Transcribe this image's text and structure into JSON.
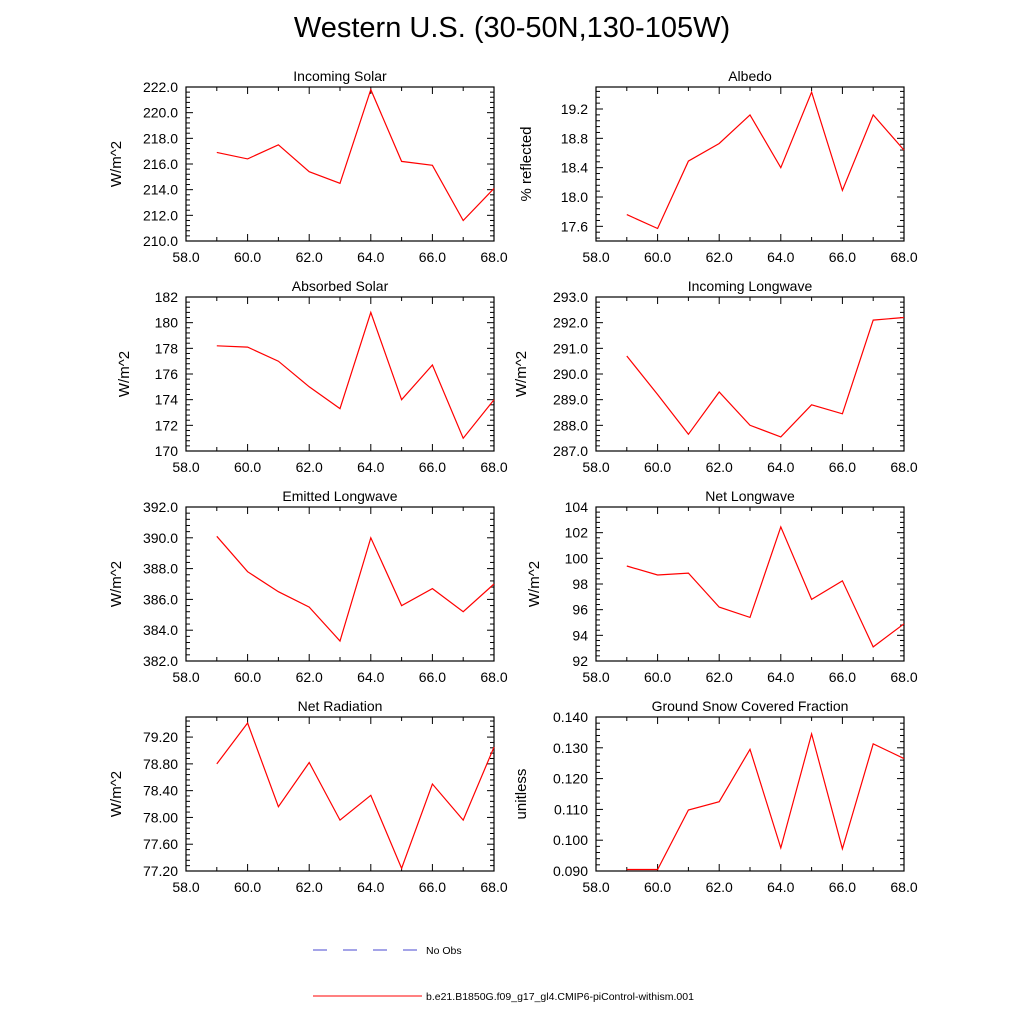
{
  "title": "Western U.S. (30-50N,130-105W)",
  "legend": {
    "items": [
      {
        "label": "No Obs",
        "color": "#4a4ad0",
        "style": "dashed"
      },
      {
        "label": "b.e21.B1850G.f09_g17_gl4.CMIP6-piControl-withism.001",
        "color": "#ff0000",
        "style": "solid"
      }
    ]
  },
  "chart_data": [
    {
      "type": "line",
      "title": "Incoming Solar",
      "ylabel": "W/m^2",
      "xlim": [
        58,
        68
      ],
      "ylim": [
        210,
        222
      ],
      "xticks": [
        "58.0",
        "60.0",
        "62.0",
        "64.0",
        "66.0",
        "68.0"
      ],
      "yticks": [
        "210.0",
        "212.0",
        "214.0",
        "216.0",
        "218.0",
        "220.0",
        "222.0"
      ],
      "ytick_values": [
        210,
        212,
        214,
        216,
        218,
        220,
        222
      ],
      "series": [
        {
          "color": "#ff0000",
          "x": [
            59,
            60,
            61,
            62,
            63,
            64,
            65,
            66,
            67,
            68
          ],
          "y": [
            216.9,
            216.4,
            217.5,
            215.4,
            214.5,
            221.8,
            216.2,
            215.9,
            211.6,
            214.1
          ]
        }
      ]
    },
    {
      "type": "line",
      "title": "Albedo",
      "ylabel": "% reflected",
      "xlim": [
        58,
        68
      ],
      "ylim": [
        17.4,
        19.5
      ],
      "xticks": [
        "58.0",
        "60.0",
        "62.0",
        "64.0",
        "66.0",
        "68.0"
      ],
      "yticks": [
        "17.6",
        "18.0",
        "18.4",
        "18.8",
        "19.2"
      ],
      "ytick_values": [
        17.6,
        18.0,
        18.4,
        18.8,
        19.2
      ],
      "series": [
        {
          "color": "#ff0000",
          "x": [
            59,
            60,
            61,
            62,
            63,
            64,
            65,
            66,
            67,
            68
          ],
          "y": [
            17.76,
            17.57,
            18.49,
            18.73,
            19.12,
            18.4,
            19.43,
            18.09,
            19.12,
            18.64
          ]
        }
      ]
    },
    {
      "type": "line",
      "title": "Absorbed Solar",
      "ylabel": "W/m^2",
      "xlim": [
        58,
        68
      ],
      "ylim": [
        170,
        182
      ],
      "xticks": [
        "58.0",
        "60.0",
        "62.0",
        "64.0",
        "66.0",
        "68.0"
      ],
      "yticks": [
        "170",
        "172",
        "174",
        "176",
        "178",
        "180",
        "182"
      ],
      "ytick_values": [
        170,
        172,
        174,
        176,
        178,
        180,
        182
      ],
      "series": [
        {
          "color": "#ff0000",
          "x": [
            59,
            60,
            61,
            62,
            63,
            64,
            65,
            66,
            67,
            68
          ],
          "y": [
            178.2,
            178.1,
            177.0,
            175.0,
            173.3,
            180.8,
            174.0,
            176.7,
            171.0,
            174.0
          ]
        }
      ]
    },
    {
      "type": "line",
      "title": "Incoming Longwave",
      "ylabel": "W/m^2",
      "xlim": [
        58,
        68
      ],
      "ylim": [
        287,
        293
      ],
      "xticks": [
        "58.0",
        "60.0",
        "62.0",
        "64.0",
        "66.0",
        "68.0"
      ],
      "yticks": [
        "287.0",
        "288.0",
        "289.0",
        "290.0",
        "291.0",
        "292.0",
        "293.0"
      ],
      "ytick_values": [
        287,
        288,
        289,
        290,
        291,
        292,
        293
      ],
      "series": [
        {
          "color": "#ff0000",
          "x": [
            59,
            60,
            61,
            62,
            63,
            64,
            65,
            66,
            67,
            68
          ],
          "y": [
            290.7,
            289.2,
            287.65,
            289.3,
            288.0,
            287.55,
            288.8,
            288.45,
            292.1,
            292.2
          ]
        }
      ]
    },
    {
      "type": "line",
      "title": "Emitted Longwave",
      "ylabel": "W/m^2",
      "xlim": [
        58,
        68
      ],
      "ylim": [
        382,
        392
      ],
      "xticks": [
        "58.0",
        "60.0",
        "62.0",
        "64.0",
        "66.0",
        "68.0"
      ],
      "yticks": [
        "382.0",
        "384.0",
        "386.0",
        "388.0",
        "390.0",
        "392.0"
      ],
      "ytick_values": [
        382,
        384,
        386,
        388,
        390,
        392
      ],
      "series": [
        {
          "color": "#ff0000",
          "x": [
            59,
            60,
            61,
            62,
            63,
            64,
            65,
            66,
            67,
            68
          ],
          "y": [
            390.1,
            387.8,
            386.5,
            385.5,
            383.3,
            390.0,
            385.6,
            386.7,
            385.2,
            387.0
          ]
        }
      ]
    },
    {
      "type": "line",
      "title": "Net Longwave",
      "ylabel": "W/m^2",
      "xlim": [
        58,
        68
      ],
      "ylim": [
        92,
        104
      ],
      "xticks": [
        "58.0",
        "60.0",
        "62.0",
        "64.0",
        "66.0",
        "68.0"
      ],
      "yticks": [
        "92",
        "94",
        "96",
        "98",
        "100",
        "102",
        "104"
      ],
      "ytick_values": [
        92,
        94,
        96,
        98,
        100,
        102,
        104
      ],
      "series": [
        {
          "color": "#ff0000",
          "x": [
            59,
            60,
            61,
            62,
            63,
            64,
            65,
            66,
            67,
            68
          ],
          "y": [
            99.4,
            98.7,
            98.85,
            96.2,
            95.4,
            102.45,
            96.8,
            98.25,
            93.1,
            94.9
          ]
        }
      ]
    },
    {
      "type": "line",
      "title": "Net Radiation",
      "ylabel": "W/m^2",
      "xlim": [
        58,
        68
      ],
      "ylim": [
        77.2,
        79.5
      ],
      "xticks": [
        "58.0",
        "60.0",
        "62.0",
        "64.0",
        "66.0",
        "68.0"
      ],
      "yticks": [
        "77.20",
        "77.60",
        "78.00",
        "78.40",
        "78.80",
        "79.20"
      ],
      "ytick_values": [
        77.2,
        77.6,
        78.0,
        78.4,
        78.8,
        79.2
      ],
      "series": [
        {
          "color": "#ff0000",
          "x": [
            59,
            60,
            61,
            62,
            63,
            64,
            65,
            66,
            67,
            68
          ],
          "y": [
            78.8,
            79.41,
            78.16,
            78.82,
            77.96,
            78.33,
            77.24,
            78.5,
            77.96,
            79.05
          ]
        }
      ]
    },
    {
      "type": "line",
      "title": "Ground Snow Covered Fraction",
      "ylabel": "unitless",
      "xlim": [
        58,
        68
      ],
      "ylim": [
        0.09,
        0.14
      ],
      "xticks": [
        "58.0",
        "60.0",
        "62.0",
        "64.0",
        "66.0",
        "68.0"
      ],
      "yticks": [
        "0.090",
        "0.100",
        "0.110",
        "0.120",
        "0.130",
        "0.140"
      ],
      "ytick_values": [
        0.09,
        0.1,
        0.11,
        0.12,
        0.13,
        0.14
      ],
      "series": [
        {
          "color": "#ff0000",
          "x": [
            59,
            60,
            61,
            62,
            63,
            64,
            65,
            66,
            67,
            68
          ],
          "y": [
            0.0905,
            0.0905,
            0.1098,
            0.1125,
            0.1295,
            0.0975,
            0.1345,
            0.0972,
            0.1313,
            0.1265
          ]
        }
      ]
    }
  ]
}
